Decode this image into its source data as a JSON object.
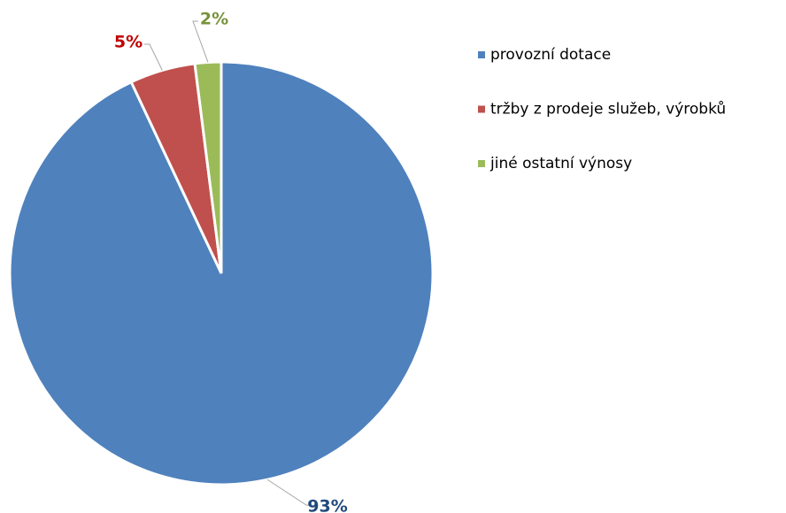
{
  "chart_data": {
    "type": "pie",
    "labels": [
      "provozní dotace",
      "tržby z prodeje služeb, výrobků",
      "jiné ostatní výnosy"
    ],
    "values": [
      93,
      5,
      2
    ],
    "value_labels": [
      "93%",
      "5%",
      "2%"
    ],
    "colors": [
      "#4f81bd",
      "#c0504d",
      "#9bbb59"
    ],
    "label_colors": [
      "#1f497d",
      "#c00000",
      "#77933c"
    ],
    "legend": "right"
  }
}
